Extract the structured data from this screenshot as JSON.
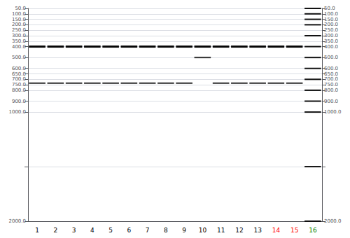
{
  "chart_data": {
    "type": "scatter",
    "marker": "rect",
    "categories": [
      "1",
      "2",
      "3",
      "4",
      "5",
      "6",
      "7",
      "8",
      "9",
      "10",
      "11",
      "12",
      "13",
      "14",
      "15",
      "16"
    ],
    "colors": [
      "black",
      "black",
      "black",
      "black",
      "black",
      "black",
      "black",
      "black",
      "black",
      "black",
      "black",
      "black",
      "black",
      "red",
      "red",
      "green"
    ],
    "series": [
      {
        "color": "#050505",
        "x": [
          "1",
          "2",
          "3",
          "4",
          "5",
          "6",
          "7",
          "8",
          "9",
          "11",
          "12",
          "13",
          "14",
          "15",
          "10"
        ],
        "values": [
          400,
          400,
          400,
          400,
          400,
          400,
          400,
          400,
          400,
          400,
          400,
          400,
          400,
          400,
          400
        ]
      },
      {
        "color": "#303030",
        "x": [
          "1",
          "2",
          "3",
          "4",
          "5",
          "6",
          "7",
          "8",
          "9",
          "11",
          "12",
          "13",
          "14",
          "15"
        ],
        "values": [
          735,
          735,
          735,
          735,
          735,
          735,
          735,
          735,
          735,
          735,
          735,
          735,
          735,
          735
        ]
      },
      {
        "color": "#303030",
        "x": [
          "10"
        ],
        "values": [
          500
        ]
      },
      {
        "color": "#111111",
        "x": [
          "16",
          "16",
          "16",
          "16",
          "16",
          "16",
          "16",
          "16",
          "16",
          "16",
          "16",
          "16",
          "16",
          "16"
        ],
        "values": [
          2000,
          1500,
          1000,
          900,
          800,
          700,
          600,
          500,
          400,
          300,
          200,
          150,
          100,
          50
        ]
      }
    ],
    "ylim": [
      2000,
      50
    ],
    "yticks": [
      {
        "value": 2000,
        "label": "2000.0"
      },
      {
        "value": 1500,
        "label": null
      },
      {
        "value": 1000,
        "label": "1000.0"
      },
      {
        "value": 900,
        "label": "900.0"
      },
      {
        "value": 800,
        "label": "800.0"
      },
      {
        "value": 750,
        "label": "750.0"
      },
      {
        "value": 700,
        "label": "700.0"
      },
      {
        "value": 650,
        "label": "650.0"
      },
      {
        "value": 600,
        "label": "600.0"
      },
      {
        "value": 500,
        "label": "500.0"
      },
      {
        "value": 400,
        "label": "400.0"
      },
      {
        "value": 350,
        "label": "350.0"
      },
      {
        "value": 300,
        "label": "300.0"
      },
      {
        "value": 250,
        "label": "250.0"
      },
      {
        "value": 200,
        "label": "200.0"
      },
      {
        "value": 150,
        "label": "150.0"
      },
      {
        "value": 100,
        "label": "100.0"
      },
      {
        "value": 50,
        "label": "50.0"
      }
    ],
    "y2lim": [
      2000,
      50
    ],
    "y2ticks": [
      {
        "value": 2000,
        "label": "2000.0"
      },
      {
        "value": 1500,
        "label": null
      },
      {
        "value": 1000,
        "label": "1000.0"
      },
      {
        "value": 900,
        "label": "900.0"
      },
      {
        "value": 800,
        "label": "800.0"
      },
      {
        "value": 750,
        "label": "750.0"
      },
      {
        "value": 700,
        "label": "700.0"
      },
      {
        "value": 650,
        "label": "650.0"
      },
      {
        "value": 600,
        "label": "600.0"
      },
      {
        "value": 500,
        "label": "500.0"
      },
      {
        "value": 400,
        "label": "400.0"
      },
      {
        "value": 350,
        "label": "350.0"
      },
      {
        "value": 300,
        "label": "300.0"
      },
      {
        "value": 250,
        "label": "250.0"
      },
      {
        "value": 200,
        "label": "200.0"
      },
      {
        "value": 150,
        "label": "150.0"
      },
      {
        "value": 100,
        "label": "100.0"
      },
      {
        "value": 50,
        "label": "50.0"
      }
    ],
    "grid": true
  }
}
